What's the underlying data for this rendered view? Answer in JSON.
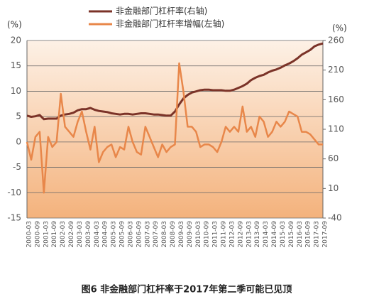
{
  "chart_data": {
    "type": "line",
    "title": "图6 非金融部门杠杆率于2017年第二季可能已见顶",
    "y_unit": "(%)",
    "y2_unit": "(%)",
    "categories": [
      "2000-03",
      null,
      "2000-09",
      null,
      "2001-03",
      null,
      "2001-09",
      null,
      "2002-03",
      null,
      "2002-09",
      null,
      "2003-03",
      null,
      "2003-09",
      null,
      "2004-03",
      null,
      "2004-09",
      null,
      "2005-03",
      null,
      "2005-09",
      null,
      "2006-03",
      null,
      "2006-09",
      null,
      "2007-03",
      null,
      "2007-09",
      null,
      "2008-03",
      null,
      "2008-09",
      null,
      "2009-03",
      null,
      "2009-09",
      null,
      "2010-03",
      null,
      "2010-09",
      null,
      "2011-03",
      null,
      "2011-09",
      null,
      "2012-03",
      null,
      "2012-09",
      null,
      "2013-03",
      null,
      "2013-09",
      null,
      "2014-03",
      null,
      "2014-09",
      null,
      "2015-03",
      null,
      "2015-09",
      null,
      "2016-03",
      null,
      "2016-09",
      null,
      "2017-03",
      null,
      "2017-09"
    ],
    "series": [
      {
        "name": "非金融部门杠杆率(右轴)",
        "color": "#7b3328",
        "axis": "y2",
        "values": [
          133,
          131,
          132,
          134,
          127,
          128,
          128,
          128,
          133,
          135,
          136,
          138,
          142,
          144,
          144,
          146,
          143,
          141,
          140,
          139,
          137,
          136,
          135,
          136,
          136,
          135,
          136,
          137,
          137,
          136,
          135,
          135,
          134,
          133,
          133,
          140,
          152,
          162,
          168,
          172,
          174,
          176,
          177,
          177,
          176,
          176,
          176,
          175,
          175,
          177,
          180,
          183,
          187,
          193,
          197,
          200,
          202,
          206,
          209,
          211,
          214,
          218,
          221,
          225,
          230,
          236,
          240,
          244,
          250,
          253,
          255
        ]
      },
      {
        "name": "非金融部门杠杆率增幅(左轴)",
        "color": "#e8874a",
        "axis": "y",
        "values": [
          0,
          -3.5,
          1,
          2,
          -10,
          1,
          -1,
          0,
          9.5,
          3,
          2,
          1,
          4,
          6,
          2,
          -1.5,
          3,
          -4,
          -2,
          -1,
          -0.5,
          -3,
          -1,
          -1.5,
          3,
          0,
          -2,
          -2.5,
          3,
          1,
          -1,
          -3,
          -0.5,
          -2,
          -1,
          -0.5,
          15.5,
          10,
          3,
          3,
          2,
          -1,
          -0.5,
          -0.5,
          -1,
          -2,
          0,
          3,
          2,
          3,
          2,
          7,
          2,
          3,
          1,
          5,
          4,
          1,
          2,
          4,
          3,
          4,
          6,
          5.5,
          5,
          2,
          2,
          1.5,
          0.5,
          -0.5,
          -0.5
        ]
      }
    ],
    "ylim": [
      -15,
      20
    ],
    "yticks": [
      -15,
      -10,
      -5,
      0,
      5,
      10,
      15,
      20
    ],
    "y2lim": [
      -40,
      260
    ],
    "y2ticks": [
      -40,
      10,
      60,
      110,
      160,
      210,
      260
    ],
    "grid": true
  }
}
